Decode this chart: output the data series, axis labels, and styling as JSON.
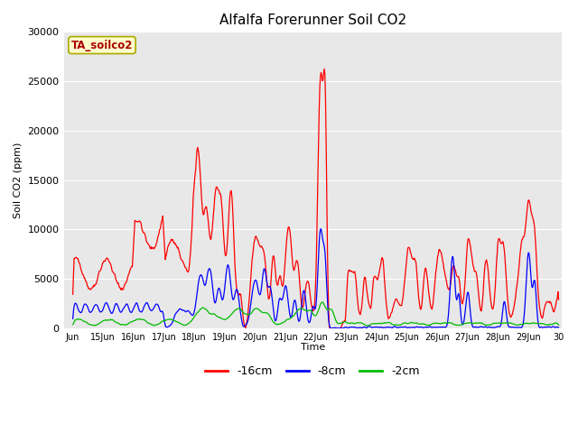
{
  "title": "Alfalfa Forerunner Soil CO2",
  "ylabel": "Soil CO2 (ppm)",
  "xlabel": "Time",
  "annotation": "TA_soilco2",
  "ylim": [
    0,
    30000
  ],
  "fig_bg": "#ffffff",
  "plot_bg": "#e8e8e8",
  "line_colors": {
    "d16cm": "#ff0000",
    "d8cm": "#0000ff",
    "d2cm": "#00bb00"
  },
  "legend_labels": [
    "-16cm",
    "-8cm",
    "-2cm"
  ],
  "x_tick_labels": [
    "Jun",
    "15Jun",
    "16Jun",
    "17Jun",
    "18Jun",
    "19Jun",
    "20Jun",
    "21Jun",
    "22Jun",
    "23Jun",
    "24Jun",
    "25Jun",
    "26Jun",
    "27Jun",
    "28Jun",
    "29Jun",
    "30"
  ],
  "seed": 42
}
